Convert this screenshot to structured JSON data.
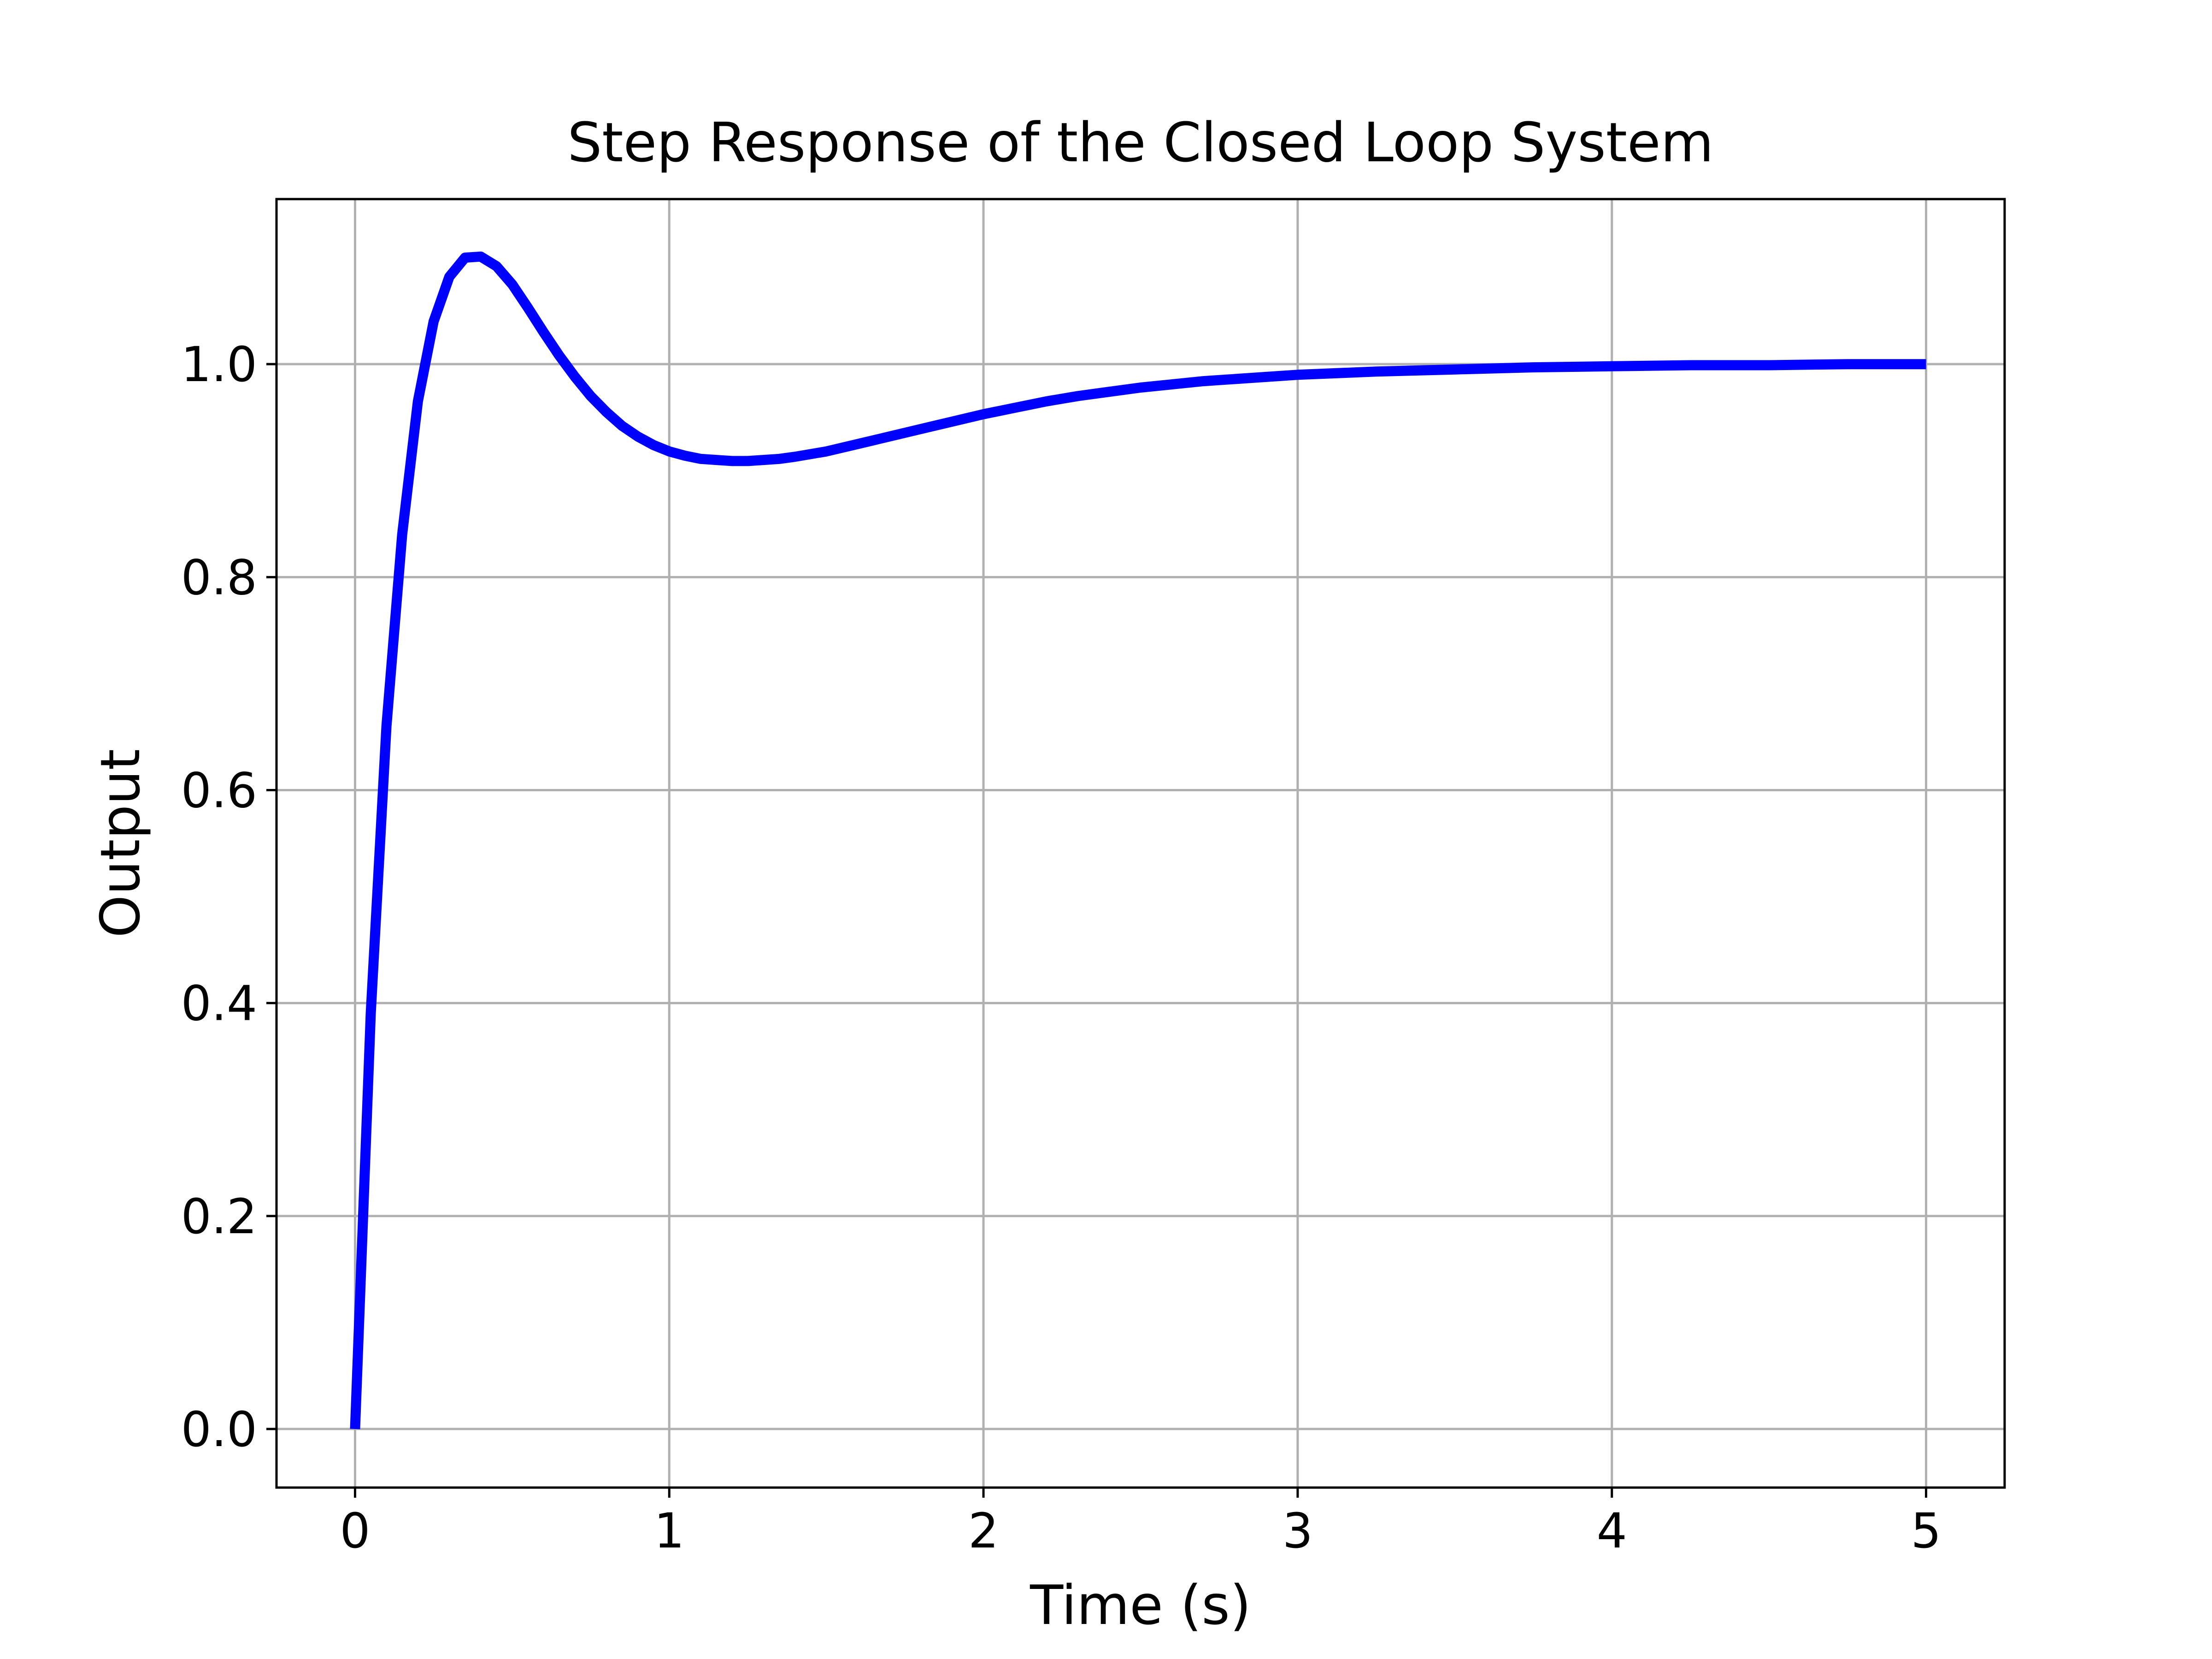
{
  "chart_data": {
    "type": "line",
    "title": "Step Response of the Closed Loop System",
    "xlabel": "Time (s)",
    "ylabel": "Output",
    "xlim": [
      -0.25,
      5.25
    ],
    "ylim": [
      -0.055,
      1.155
    ],
    "xticks": [
      0,
      1,
      2,
      3,
      4,
      5
    ],
    "xtick_labels": [
      "0",
      "1",
      "2",
      "3",
      "4",
      "5"
    ],
    "yticks": [
      0.0,
      0.2,
      0.4,
      0.6,
      0.8,
      1.0
    ],
    "ytick_labels": [
      "0.0",
      "0.2",
      "0.4",
      "0.6",
      "0.8",
      "1.0"
    ],
    "grid": true,
    "legend": "none",
    "series": [
      {
        "color": "#0000ff",
        "x": [
          0,
          0.05,
          0.1,
          0.15,
          0.2,
          0.25,
          0.3,
          0.35,
          0.4,
          0.45,
          0.5,
          0.55,
          0.6,
          0.65,
          0.7,
          0.75,
          0.8,
          0.85,
          0.9,
          0.95,
          1.0,
          1.05,
          1.1,
          1.15,
          1.2,
          1.25,
          1.3,
          1.35,
          1.4,
          1.5,
          1.6,
          1.7,
          1.8,
          1.9,
          2.0,
          2.1,
          2.2,
          2.3,
          2.4,
          2.5,
          2.6,
          2.7,
          2.8,
          2.9,
          3.0,
          3.25,
          3.5,
          3.75,
          4.0,
          4.25,
          4.5,
          4.75,
          5.0
        ],
        "y": [
          0.0,
          0.39,
          0.66,
          0.84,
          0.965,
          1.04,
          1.082,
          1.1,
          1.101,
          1.092,
          1.075,
          1.053,
          1.03,
          1.008,
          0.988,
          0.97,
          0.955,
          0.942,
          0.932,
          0.924,
          0.918,
          0.914,
          0.911,
          0.91,
          0.909,
          0.909,
          0.91,
          0.911,
          0.913,
          0.918,
          0.925,
          0.932,
          0.939,
          0.946,
          0.953,
          0.959,
          0.965,
          0.97,
          0.974,
          0.978,
          0.981,
          0.984,
          0.986,
          0.988,
          0.99,
          0.993,
          0.995,
          0.997,
          0.998,
          0.999,
          0.999,
          1.0,
          1.0
        ]
      }
    ]
  }
}
